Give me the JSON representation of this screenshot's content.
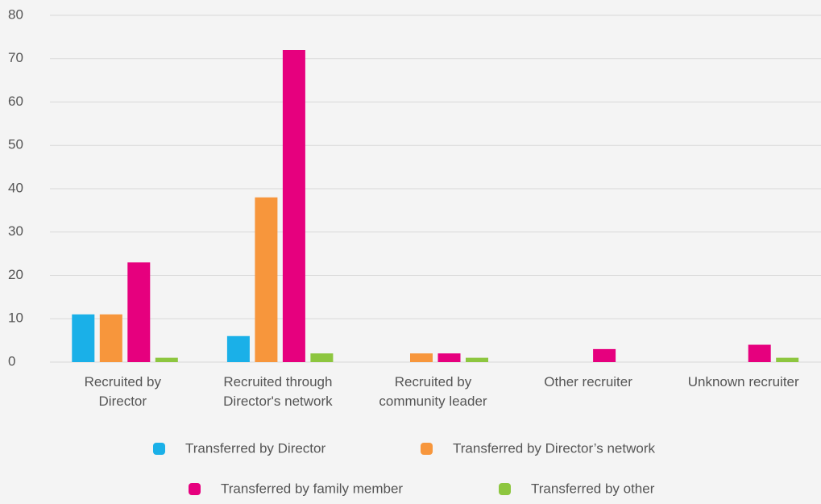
{
  "chart_data": {
    "type": "bar",
    "categories": [
      "Recruited by Director",
      "Recruited through Director's network",
      "Recruited by community leader",
      "Other recruiter",
      "Unknown recruiter"
    ],
    "series": [
      {
        "name": "Transferred by Director",
        "color": "#1ab0e8",
        "values": [
          11,
          6,
          0,
          0,
          0
        ]
      },
      {
        "name": "Transferred by Director’s network",
        "color": "#f7963c",
        "values": [
          11,
          38,
          2,
          0,
          0
        ]
      },
      {
        "name": "Transferred by family member",
        "color": "#e6007e",
        "values": [
          23,
          72,
          2,
          3,
          4
        ]
      },
      {
        "name": "Transferred by other",
        "color": "#8dc63f",
        "values": [
          1,
          2,
          1,
          0,
          1
        ]
      }
    ],
    "ylim": [
      0,
      80
    ],
    "yticks": [
      0,
      10,
      20,
      30,
      40,
      50,
      60,
      70,
      80
    ],
    "grid": true,
    "legend": "bottom"
  }
}
